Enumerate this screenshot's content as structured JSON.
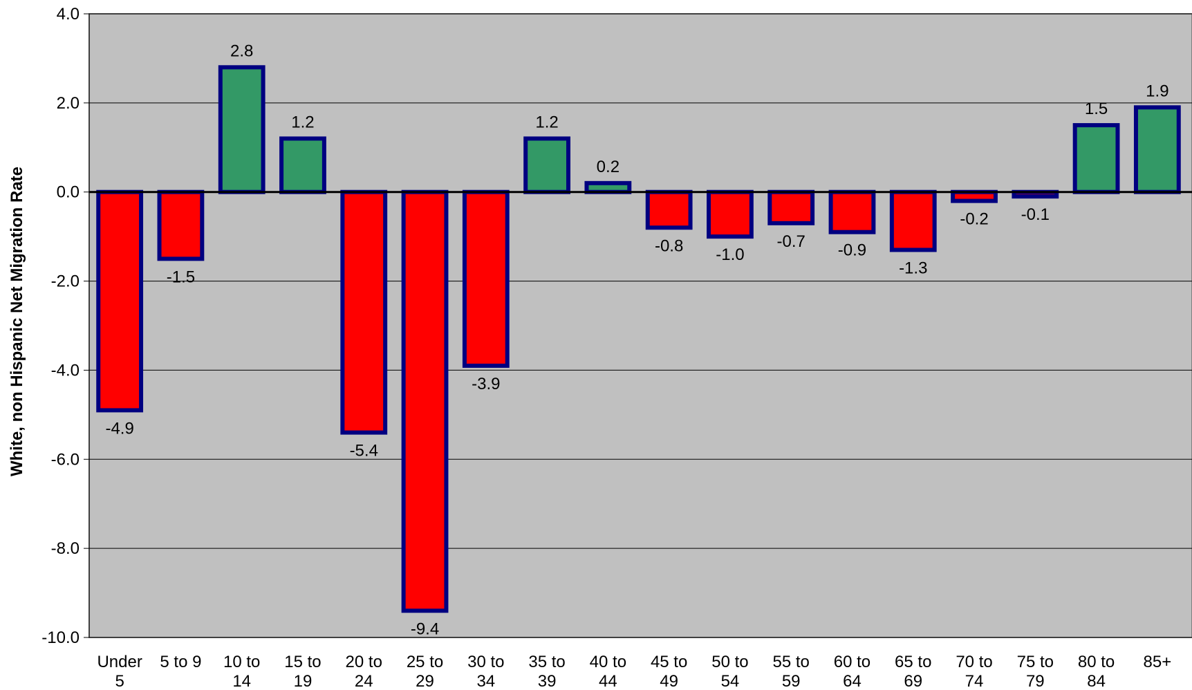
{
  "chart_data": {
    "type": "bar",
    "title": "",
    "xlabel": "",
    "ylabel": "White, non Hispanic Net Migration Rate",
    "ylim": [
      -10.0,
      4.0
    ],
    "yticks": [
      4.0,
      2.0,
      0.0,
      -2.0,
      -4.0,
      -6.0,
      -8.0,
      -10.0
    ],
    "ytick_labels": [
      "4.0",
      "2.0",
      "0.0",
      "-2.0",
      "-4.0",
      "-6.0",
      "-8.0",
      "-10.0"
    ],
    "grid": true,
    "categories": [
      [
        "Under",
        "5"
      ],
      [
        "5 to 9"
      ],
      [
        "10 to",
        "14"
      ],
      [
        "15 to",
        "19"
      ],
      [
        "20 to",
        "24"
      ],
      [
        "25 to",
        "29"
      ],
      [
        "30 to",
        "34"
      ],
      [
        "35 to",
        "39"
      ],
      [
        "40 to",
        "44"
      ],
      [
        "45 to",
        "49"
      ],
      [
        "50 to",
        "54"
      ],
      [
        "55 to",
        "59"
      ],
      [
        "60 to",
        "64"
      ],
      [
        "65 to",
        "69"
      ],
      [
        "70 to",
        "74"
      ],
      [
        "75 to",
        "79"
      ],
      [
        "80 to",
        "84"
      ],
      [
        "85+"
      ]
    ],
    "values": [
      -4.9,
      -1.5,
      2.8,
      1.2,
      -5.4,
      -9.4,
      -3.9,
      1.2,
      0.2,
      -0.8,
      -1.0,
      -0.7,
      -0.9,
      -1.3,
      -0.2,
      -0.1,
      1.5,
      1.9
    ],
    "data_labels": [
      "-4.9",
      "-1.5",
      "2.8",
      "1.2",
      "-5.4",
      "-9.4",
      "-3.9",
      "1.2",
      "0.2",
      "-0.8",
      "-1.0",
      "-0.7",
      "-0.9",
      "-1.3",
      "-0.2",
      "-0.1",
      "1.5",
      "1.9"
    ],
    "colors": {
      "positive": "#339966",
      "negative": "#ff0000",
      "bar_border": "#000080",
      "plot_background": "#c0c0c0",
      "gridline": "#000000"
    }
  }
}
